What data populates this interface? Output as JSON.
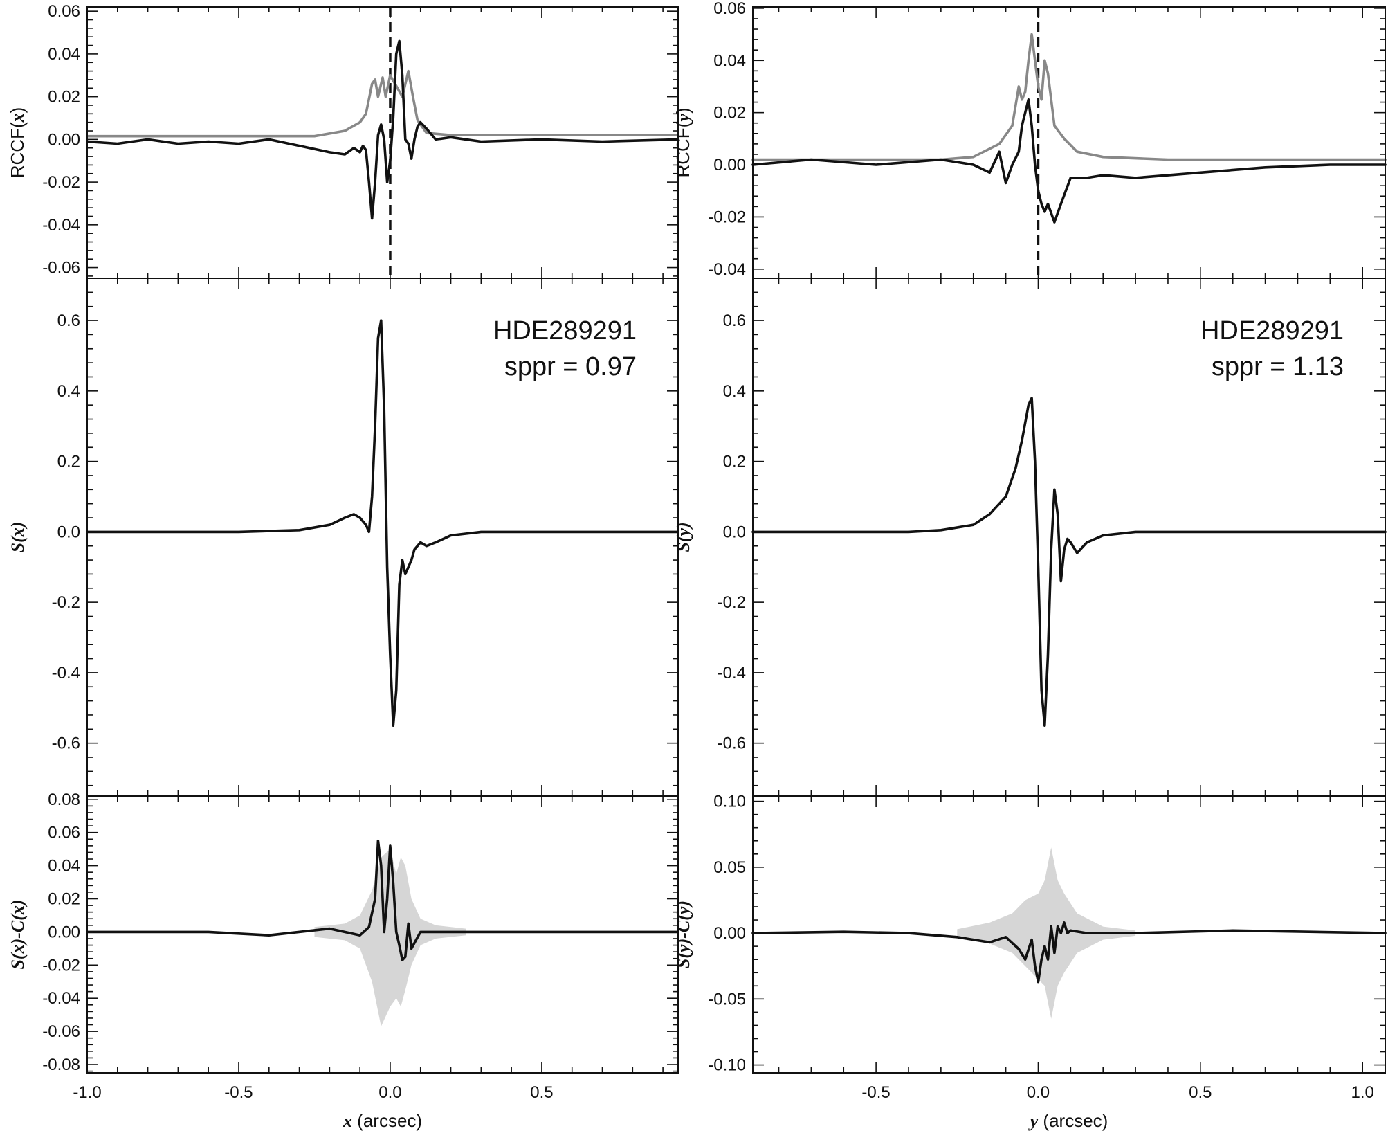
{
  "chart_data": [
    {
      "type": "line",
      "panel": "left-top",
      "ylabel": [
        "RCCF(",
        "x",
        ")"
      ],
      "xlim": [
        -1.0,
        0.95
      ],
      "ylim": [
        -0.065,
        0.062
      ],
      "yticks": [
        "0.06",
        "0.04",
        "0.02",
        "0.00",
        "-0.02",
        "-0.04",
        "-0.06"
      ],
      "ytick_values": [
        0.06,
        0.04,
        0.02,
        0.0,
        -0.02,
        -0.04,
        -0.06
      ],
      "vline_x": 0.0,
      "series": [
        {
          "color": "#888888",
          "x": [
            -1.0,
            -0.25,
            -0.15,
            -0.1,
            -0.08,
            -0.06,
            -0.05,
            -0.04,
            -0.025,
            -0.015,
            0.0,
            0.02,
            0.04,
            0.06,
            0.075,
            0.09,
            0.12,
            0.2,
            0.4,
            0.95
          ],
          "y": [
            0.0015,
            0.0015,
            0.004,
            0.008,
            0.012,
            0.026,
            0.028,
            0.02,
            0.029,
            0.02,
            0.03,
            0.025,
            0.02,
            0.032,
            0.02,
            0.009,
            0.003,
            0.002,
            0.002,
            0.002
          ]
        },
        {
          "color": "#111111",
          "x": [
            -1.0,
            -0.9,
            -0.8,
            -0.7,
            -0.6,
            -0.5,
            -0.4,
            -0.3,
            -0.2,
            -0.15,
            -0.12,
            -0.1,
            -0.09,
            -0.08,
            -0.07,
            -0.06,
            -0.05,
            -0.04,
            -0.03,
            -0.02,
            -0.01,
            0.0,
            0.01,
            0.02,
            0.03,
            0.04,
            0.05,
            0.06,
            0.07,
            0.08,
            0.09,
            0.1,
            0.12,
            0.15,
            0.2,
            0.3,
            0.5,
            0.7,
            0.95
          ],
          "y": [
            -0.001,
            -0.002,
            0.0,
            -0.002,
            -0.001,
            -0.002,
            0.0,
            -0.003,
            -0.006,
            -0.007,
            -0.004,
            -0.006,
            -0.003,
            -0.005,
            -0.02,
            -0.037,
            -0.02,
            0.002,
            0.007,
            0.0,
            -0.02,
            -0.01,
            0.01,
            0.04,
            0.046,
            0.03,
            0.0,
            -0.002,
            -0.009,
            0.0,
            0.006,
            0.008,
            0.005,
            0.0,
            0.001,
            -0.001,
            0.0,
            -0.001,
            0.0
          ]
        }
      ]
    },
    {
      "type": "line",
      "panel": "left-mid",
      "ylabel": [
        "",
        "S(x)",
        ""
      ],
      "annotation": [
        "HDE289291",
        "sppr = 0.97"
      ],
      "xlim": [
        -1.0,
        0.95
      ],
      "ylim": [
        -0.75,
        0.72
      ],
      "yticks": [
        "0.6",
        "0.4",
        "0.2",
        "0.0",
        "-0.2",
        "-0.4",
        "-0.6"
      ],
      "ytick_values": [
        0.6,
        0.4,
        0.2,
        0.0,
        -0.2,
        -0.4,
        -0.6
      ],
      "series": [
        {
          "color": "#111111",
          "x": [
            -1.0,
            -0.5,
            -0.3,
            -0.2,
            -0.15,
            -0.12,
            -0.1,
            -0.08,
            -0.07,
            -0.06,
            -0.05,
            -0.04,
            -0.03,
            -0.02,
            -0.01,
            0.0,
            0.01,
            0.02,
            0.03,
            0.04,
            0.05,
            0.06,
            0.07,
            0.08,
            0.1,
            0.12,
            0.15,
            0.2,
            0.3,
            0.5,
            0.7,
            0.95
          ],
          "y": [
            0.0,
            0.0,
            0.005,
            0.02,
            0.04,
            0.05,
            0.04,
            0.02,
            0.0,
            0.1,
            0.3,
            0.55,
            0.6,
            0.35,
            -0.1,
            -0.35,
            -0.55,
            -0.45,
            -0.15,
            -0.08,
            -0.12,
            -0.1,
            -0.08,
            -0.05,
            -0.03,
            -0.04,
            -0.03,
            -0.01,
            0.0,
            0.0,
            0.0,
            0.0
          ]
        }
      ]
    },
    {
      "type": "area",
      "panel": "left-bottom",
      "ylabel": [
        "",
        "S(x)-C(x)",
        ""
      ],
      "xlim": [
        -1.0,
        0.95
      ],
      "ylim": [
        -0.085,
        0.082
      ],
      "xticks": [
        "-1.0",
        "-0.5",
        "0.0",
        "0.5"
      ],
      "xtick_values": [
        -1.0,
        -0.5,
        0.0,
        0.5
      ],
      "xlabel": [
        "x",
        " (arcsec)"
      ],
      "yticks": [
        "0.08",
        "0.06",
        "0.04",
        "0.02",
        "0.00",
        "-0.02",
        "-0.04",
        "-0.06",
        "-0.08"
      ],
      "ytick_values": [
        0.08,
        0.06,
        0.04,
        0.02,
        0.0,
        -0.02,
        -0.04,
        -0.06,
        -0.08
      ],
      "band": {
        "color": "#d6d6d6",
        "x": [
          -0.25,
          -0.15,
          -0.1,
          -0.06,
          -0.03,
          0.0,
          0.02,
          0.035,
          0.05,
          0.07,
          0.1,
          0.15,
          0.25
        ],
        "upper": [
          0.003,
          0.005,
          0.01,
          0.025,
          0.045,
          0.05,
          0.035,
          0.045,
          0.04,
          0.02,
          0.008,
          0.004,
          0.002
        ],
        "lower": [
          -0.003,
          -0.005,
          -0.01,
          -0.03,
          -0.057,
          -0.045,
          -0.04,
          -0.045,
          -0.035,
          -0.02,
          -0.008,
          -0.004,
          -0.002
        ]
      },
      "series": [
        {
          "color": "#111111",
          "x": [
            -1.0,
            -0.8,
            -0.6,
            -0.4,
            -0.2,
            -0.1,
            -0.07,
            -0.05,
            -0.04,
            -0.03,
            -0.02,
            -0.01,
            0.0,
            0.01,
            0.02,
            0.03,
            0.04,
            0.05,
            0.06,
            0.07,
            0.1,
            0.2,
            0.5,
            0.95
          ],
          "y": [
            0.0,
            0.0,
            0.0,
            -0.002,
            0.002,
            -0.002,
            0.003,
            0.02,
            0.055,
            0.04,
            0.0,
            0.02,
            0.052,
            0.03,
            0.0,
            -0.008,
            -0.017,
            -0.015,
            0.005,
            -0.01,
            0.0,
            0.0,
            0.0,
            0.0
          ]
        }
      ]
    },
    {
      "type": "line",
      "panel": "right-top",
      "ylabel": [
        "RCCF(",
        "y",
        ")"
      ],
      "xlim": [
        -0.88,
        1.07
      ],
      "ylim": [
        -0.0435,
        0.0605
      ],
      "yticks": [
        "0.06",
        "0.04",
        "0.02",
        "0.00",
        "-0.02",
        "-0.04"
      ],
      "ytick_values": [
        0.06,
        0.04,
        0.02,
        0.0,
        -0.02,
        -0.04
      ],
      "vline_x": 0.0,
      "series": [
        {
          "color": "#888888",
          "x": [
            -0.88,
            -0.3,
            -0.2,
            -0.12,
            -0.08,
            -0.06,
            -0.05,
            -0.04,
            -0.03,
            -0.02,
            -0.01,
            0.0,
            0.01,
            0.02,
            0.03,
            0.04,
            0.05,
            0.08,
            0.12,
            0.2,
            0.4,
            1.07
          ],
          "y": [
            0.002,
            0.002,
            0.003,
            0.008,
            0.015,
            0.03,
            0.025,
            0.028,
            0.04,
            0.05,
            0.04,
            0.03,
            0.025,
            0.04,
            0.035,
            0.025,
            0.015,
            0.01,
            0.005,
            0.003,
            0.002,
            0.002
          ]
        },
        {
          "color": "#111111",
          "x": [
            -0.88,
            -0.7,
            -0.5,
            -0.3,
            -0.2,
            -0.15,
            -0.12,
            -0.1,
            -0.08,
            -0.06,
            -0.05,
            -0.04,
            -0.03,
            -0.02,
            -0.01,
            0.0,
            0.01,
            0.02,
            0.03,
            0.05,
            0.07,
            0.1,
            0.15,
            0.2,
            0.3,
            0.5,
            0.7,
            0.9,
            1.07
          ],
          "y": [
            0.0,
            0.002,
            0.0,
            0.002,
            0.0,
            -0.003,
            0.005,
            -0.007,
            0.0,
            0.005,
            0.015,
            0.02,
            0.025,
            0.015,
            0.0,
            -0.01,
            -0.015,
            -0.018,
            -0.015,
            -0.022,
            -0.015,
            -0.005,
            -0.005,
            -0.004,
            -0.005,
            -0.003,
            -0.001,
            0.0,
            0.0
          ]
        }
      ]
    },
    {
      "type": "line",
      "panel": "right-mid",
      "ylabel": [
        "",
        "S(y)",
        ""
      ],
      "annotation": [
        "HDE289291",
        "sppr = 1.13"
      ],
      "xlim": [
        -0.88,
        1.07
      ],
      "ylim": [
        -0.75,
        0.72
      ],
      "yticks": [
        "0.6",
        "0.4",
        "0.2",
        "0.0",
        "-0.2",
        "-0.4",
        "-0.6"
      ],
      "ytick_values": [
        0.6,
        0.4,
        0.2,
        0.0,
        -0.2,
        -0.4,
        -0.6
      ],
      "series": [
        {
          "color": "#111111",
          "x": [
            -0.88,
            -0.4,
            -0.3,
            -0.2,
            -0.15,
            -0.1,
            -0.07,
            -0.05,
            -0.03,
            -0.02,
            -0.01,
            0.0,
            0.01,
            0.02,
            0.03,
            0.04,
            0.05,
            0.06,
            0.07,
            0.08,
            0.09,
            0.1,
            0.12,
            0.15,
            0.2,
            0.3,
            0.5,
            0.7,
            1.07
          ],
          "y": [
            0.0,
            0.0,
            0.005,
            0.02,
            0.05,
            0.1,
            0.18,
            0.26,
            0.36,
            0.38,
            0.2,
            -0.1,
            -0.45,
            -0.55,
            -0.35,
            -0.05,
            0.12,
            0.05,
            -0.14,
            -0.05,
            -0.02,
            -0.03,
            -0.06,
            -0.03,
            -0.01,
            0.0,
            0.0,
            0.0,
            0.0
          ]
        }
      ]
    },
    {
      "type": "area",
      "panel": "right-bottom",
      "ylabel": [
        "",
        "S(y)-C(y)",
        ""
      ],
      "xlim": [
        -0.88,
        1.07
      ],
      "ylim": [
        -0.106,
        0.104
      ],
      "xticks": [
        "-0.5",
        "0.0",
        "0.5",
        "1.0"
      ],
      "xtick_values": [
        -0.5,
        0.0,
        0.5,
        1.0
      ],
      "xlabel": [
        "y",
        " (arcsec)"
      ],
      "yticks": [
        "0.10",
        "0.05",
        "0.00",
        "-0.05",
        "-0.10"
      ],
      "ytick_values": [
        0.1,
        0.05,
        0.0,
        -0.05,
        -0.1
      ],
      "band": {
        "color": "#d6d6d6",
        "x": [
          -0.25,
          -0.15,
          -0.08,
          -0.04,
          0.0,
          0.02,
          0.04,
          0.06,
          0.08,
          0.12,
          0.2,
          0.3
        ],
        "upper": [
          0.003,
          0.008,
          0.015,
          0.025,
          0.03,
          0.04,
          0.065,
          0.04,
          0.03,
          0.015,
          0.005,
          0.002
        ],
        "lower": [
          -0.003,
          -0.008,
          -0.015,
          -0.025,
          -0.035,
          -0.04,
          -0.065,
          -0.04,
          -0.03,
          -0.015,
          -0.005,
          -0.002
        ]
      },
      "series": [
        {
          "color": "#111111",
          "x": [
            -0.88,
            -0.6,
            -0.4,
            -0.25,
            -0.15,
            -0.1,
            -0.06,
            -0.04,
            -0.02,
            -0.01,
            0.0,
            0.01,
            0.02,
            0.03,
            0.04,
            0.05,
            0.06,
            0.07,
            0.08,
            0.09,
            0.1,
            0.15,
            0.3,
            0.6,
            1.07
          ],
          "y": [
            0.0,
            0.001,
            0.0,
            -0.003,
            -0.007,
            -0.003,
            -0.012,
            -0.02,
            -0.005,
            -0.025,
            -0.037,
            -0.02,
            -0.01,
            -0.02,
            0.005,
            -0.015,
            0.005,
            0.0,
            0.008,
            0.0,
            0.002,
            0.0,
            0.0,
            0.002,
            0.0
          ]
        }
      ]
    }
  ]
}
